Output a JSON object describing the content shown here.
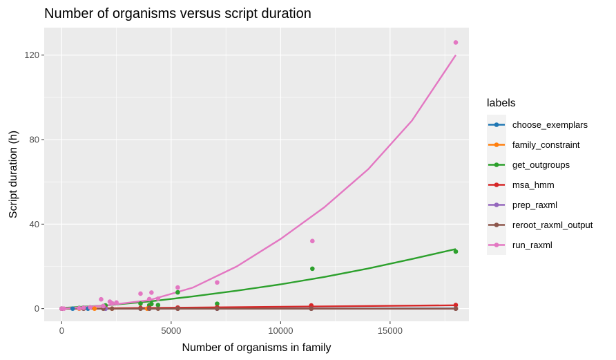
{
  "chart_data": {
    "type": "scatter",
    "title": "Number of organisms versus script duration",
    "xlabel": "Number of organisms in family",
    "ylabel": "Script duration (h)",
    "xlim": [
      -800,
      18600
    ],
    "ylim": [
      -6,
      133
    ],
    "x_ticks": [
      0,
      5000,
      10000,
      15000
    ],
    "x_tick_labels": [
      "0",
      "5000",
      "10000",
      "15000"
    ],
    "y_ticks": [
      0,
      40,
      80,
      120
    ],
    "y_tick_labels": [
      "0",
      "40",
      "80",
      "120"
    ],
    "legend_title": "labels",
    "legend_position": "right",
    "series": [
      {
        "name": "choose_exemplars",
        "color": "#1f77b4",
        "points": [
          [
            0,
            0
          ],
          [
            500,
            0
          ],
          [
            1200,
            0
          ],
          [
            2000,
            0
          ],
          [
            3600,
            0
          ],
          [
            4000,
            0
          ],
          [
            5300,
            0
          ],
          [
            7100,
            0
          ],
          [
            11400,
            0
          ],
          [
            18000,
            0
          ]
        ],
        "fit": [
          [
            0,
            0
          ],
          [
            18000,
            0.1
          ]
        ]
      },
      {
        "name": "family_constraint",
        "color": "#ff7f0e",
        "points": [
          [
            0,
            0
          ],
          [
            800,
            0
          ],
          [
            1500,
            0
          ],
          [
            2300,
            0
          ],
          [
            3900,
            0
          ],
          [
            5300,
            0
          ],
          [
            11400,
            0
          ],
          [
            18000,
            0
          ]
        ],
        "fit": [
          [
            0,
            0
          ],
          [
            18000,
            0
          ]
        ]
      },
      {
        "name": "get_outgroups",
        "color": "#2ca02c",
        "points": [
          [
            0,
            0
          ],
          [
            800,
            0.3
          ],
          [
            1000,
            0.5
          ],
          [
            1300,
            0.6
          ],
          [
            1900,
            1.2
          ],
          [
            2000,
            1.5
          ],
          [
            2300,
            2.5
          ],
          [
            3600,
            2.4
          ],
          [
            4000,
            1.6
          ],
          [
            4100,
            2.2
          ],
          [
            4400,
            1.7
          ],
          [
            5300,
            7.7
          ],
          [
            7100,
            2.3
          ],
          [
            11450,
            18.9
          ],
          [
            18000,
            27
          ]
        ],
        "fit": [
          [
            0,
            0.3
          ],
          [
            2000,
            1.5
          ],
          [
            4000,
            3.4
          ],
          [
            6000,
            5.8
          ],
          [
            8000,
            8.5
          ],
          [
            10000,
            11.5
          ],
          [
            12000,
            15
          ],
          [
            14000,
            19
          ],
          [
            16000,
            23.5
          ],
          [
            18000,
            28.2
          ]
        ]
      },
      {
        "name": "msa_hmm",
        "color": "#d62728",
        "points": [
          [
            0,
            0
          ],
          [
            1000,
            0.1
          ],
          [
            2000,
            0.2
          ],
          [
            3600,
            0.3
          ],
          [
            4000,
            0.3
          ],
          [
            5300,
            0.5
          ],
          [
            7100,
            0.6
          ],
          [
            11400,
            1.5
          ],
          [
            18000,
            1.7
          ]
        ],
        "fit": [
          [
            0,
            0
          ],
          [
            18000,
            1.6
          ]
        ]
      },
      {
        "name": "prep_raxml",
        "color": "#9467bd",
        "points": [
          [
            0,
            0
          ],
          [
            1000,
            0
          ],
          [
            2000,
            0
          ],
          [
            4000,
            0
          ],
          [
            5300,
            0
          ],
          [
            7100,
            0
          ],
          [
            11400,
            0
          ],
          [
            18000,
            0
          ]
        ],
        "fit": [
          [
            0,
            0
          ],
          [
            18000,
            0
          ]
        ]
      },
      {
        "name": "reroot_raxml_output",
        "color": "#8c564b",
        "points": [
          [
            0,
            0
          ],
          [
            1000,
            0
          ],
          [
            1900,
            0
          ],
          [
            2300,
            0
          ],
          [
            3600,
            0
          ],
          [
            4000,
            0
          ],
          [
            4400,
            0
          ],
          [
            5300,
            0
          ],
          [
            7100,
            0
          ],
          [
            11400,
            0
          ],
          [
            18000,
            0
          ]
        ],
        "fit": [
          [
            0,
            0
          ],
          [
            18000,
            0
          ]
        ]
      },
      {
        "name": "run_raxml",
        "color": "#e377c2",
        "points": [
          [
            0,
            0
          ],
          [
            100,
            0
          ],
          [
            800,
            0.2
          ],
          [
            1000,
            0.4
          ],
          [
            1300,
            0.6
          ],
          [
            1800,
            4.4
          ],
          [
            1900,
            1.2
          ],
          [
            2200,
            3.3
          ],
          [
            2300,
            2.5
          ],
          [
            2500,
            2.9
          ],
          [
            3600,
            7.1
          ],
          [
            4000,
            4.5
          ],
          [
            4100,
            7.6
          ],
          [
            4400,
            4.7
          ],
          [
            5300,
            10
          ],
          [
            7100,
            12.4
          ],
          [
            11450,
            32
          ],
          [
            18000,
            126
          ]
        ],
        "fit": [
          [
            0,
            0
          ],
          [
            2000,
            1.5
          ],
          [
            4000,
            4
          ],
          [
            6000,
            10
          ],
          [
            8000,
            20
          ],
          [
            10000,
            33
          ],
          [
            12000,
            48
          ],
          [
            14000,
            66
          ],
          [
            16000,
            89
          ],
          [
            18000,
            120
          ]
        ]
      }
    ]
  }
}
